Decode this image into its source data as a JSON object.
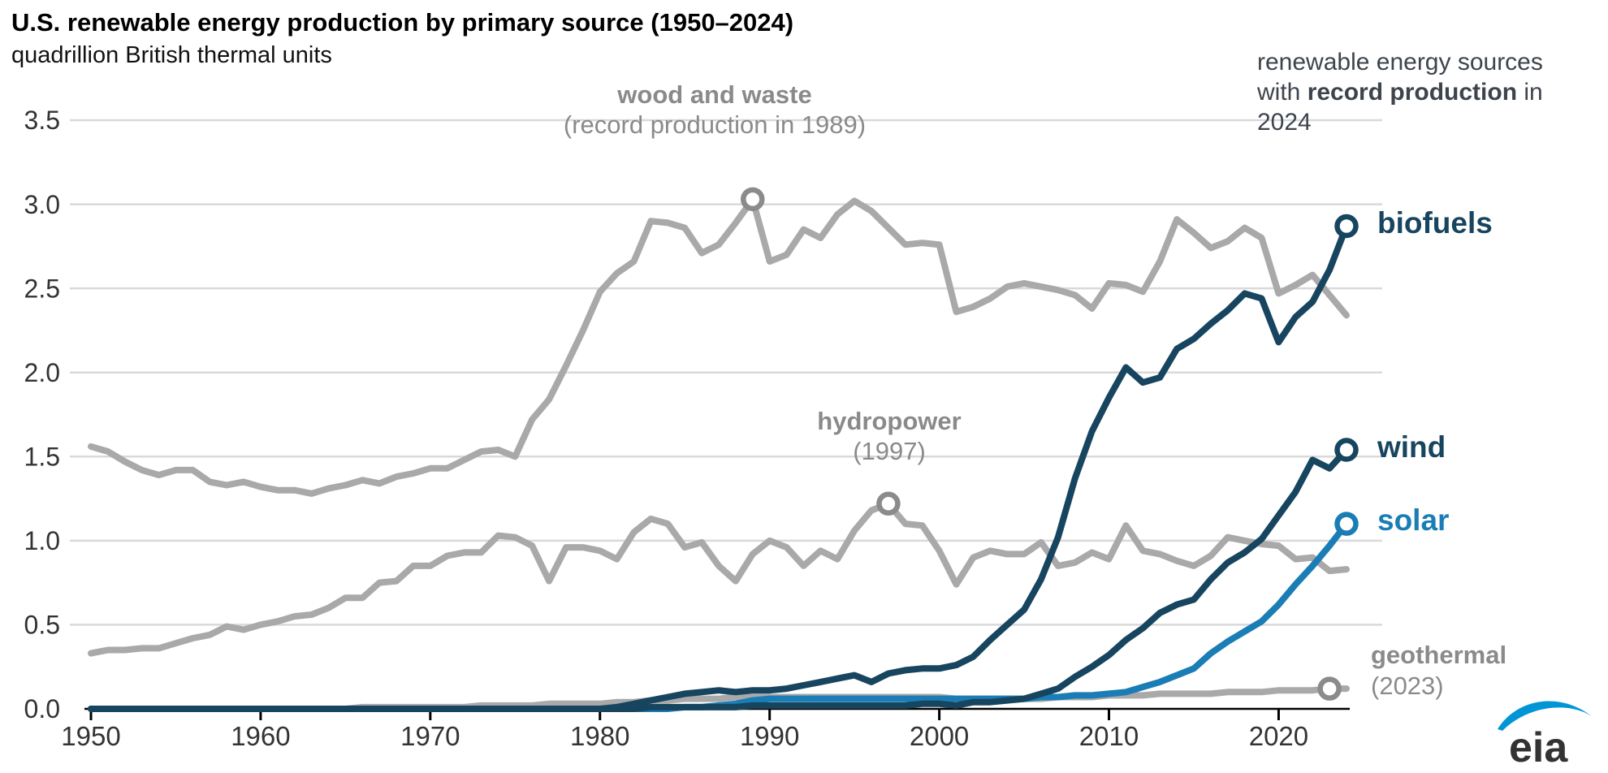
{
  "header": {
    "title": "U.S. renewable energy production by primary source (1950–2024)",
    "subtitle": "quadrillion British thermal units"
  },
  "annotations": {
    "right_note": {
      "pre": "renewable energy sources with ",
      "bold": "record production",
      "post": " in 2024"
    },
    "wood_note": {
      "line1": "wood and waste",
      "line2": "(record production in 1989)"
    },
    "hydro_note": {
      "line1": "hydropower",
      "line2": "(1997)"
    },
    "geo_note": {
      "line1": "geothermal",
      "line2": "(2023)"
    }
  },
  "series_labels": {
    "biofuels": "biofuels",
    "wind": "wind",
    "solar": "solar"
  },
  "logo": {
    "text": "eia",
    "swoosh_color": "#0096d6",
    "text_color": "#333333"
  },
  "colors": {
    "navy": "#17455f",
    "blue": "#1b7db5",
    "gray_line": "#a9a9a9",
    "gray_marker": "#8b8b8b",
    "grid": "#d9d9d9",
    "axis": "#000000",
    "tick_text": "#333333",
    "note_gray": "#8a8a8a",
    "note_dark": "#3d444c"
  },
  "chart_data": {
    "type": "line",
    "title": "U.S. renewable energy production by primary source (1950–2024)",
    "ylabel": "quadrillion British thermal units",
    "xlim": [
      1950,
      2024
    ],
    "ylim": [
      0,
      3.5
    ],
    "x_ticks": [
      1950,
      1960,
      1970,
      1980,
      1990,
      2000,
      2010,
      2020
    ],
    "y_ticks": [
      0.0,
      0.5,
      1.0,
      1.5,
      2.0,
      2.5,
      3.0,
      3.5
    ],
    "grid": true,
    "legend_position": "end-of-line labels",
    "years_start": 1950,
    "series": [
      {
        "name": "wood and waste",
        "key": "wood_and_waste",
        "color": "#a9a9a9",
        "marker_color": "#8b8b8b",
        "values": [
          1.56,
          1.53,
          1.47,
          1.42,
          1.39,
          1.42,
          1.42,
          1.35,
          1.33,
          1.35,
          1.32,
          1.3,
          1.3,
          1.28,
          1.31,
          1.33,
          1.36,
          1.34,
          1.38,
          1.4,
          1.43,
          1.43,
          1.48,
          1.53,
          1.54,
          1.5,
          1.72,
          1.84,
          2.04,
          2.25,
          2.48,
          2.59,
          2.66,
          2.9,
          2.89,
          2.86,
          2.71,
          2.76,
          2.89,
          3.03,
          2.66,
          2.7,
          2.85,
          2.8,
          2.94,
          3.02,
          2.96,
          2.86,
          2.76,
          2.77,
          2.76,
          2.36,
          2.39,
          2.44,
          2.51,
          2.53,
          2.51,
          2.49,
          2.46,
          2.38,
          2.53,
          2.52,
          2.48,
          2.66,
          2.91,
          2.83,
          2.74,
          2.78,
          2.86,
          2.8,
          2.47,
          2.52,
          2.58,
          2.46,
          2.34
        ]
      },
      {
        "name": "hydropower",
        "key": "hydropower",
        "color": "#a9a9a9",
        "marker_color": "#8b8b8b",
        "values": [
          0.33,
          0.35,
          0.35,
          0.36,
          0.36,
          0.39,
          0.42,
          0.44,
          0.49,
          0.47,
          0.5,
          0.52,
          0.55,
          0.56,
          0.6,
          0.66,
          0.66,
          0.75,
          0.76,
          0.85,
          0.85,
          0.91,
          0.93,
          0.93,
          1.03,
          1.02,
          0.97,
          0.76,
          0.96,
          0.96,
          0.94,
          0.89,
          1.05,
          1.13,
          1.1,
          0.96,
          0.99,
          0.85,
          0.76,
          0.92,
          1.0,
          0.96,
          0.85,
          0.94,
          0.89,
          1.06,
          1.18,
          1.22,
          1.1,
          1.09,
          0.94,
          0.74,
          0.9,
          0.94,
          0.92,
          0.92,
          0.99,
          0.85,
          0.87,
          0.93,
          0.89,
          1.09,
          0.94,
          0.92,
          0.88,
          0.85,
          0.91,
          1.02,
          1.0,
          0.98,
          0.97,
          0.89,
          0.9,
          0.82,
          0.83
        ]
      },
      {
        "name": "geothermal",
        "key": "geothermal",
        "color": "#a9a9a9",
        "marker_color": "#8b8b8b",
        "values": [
          0.0,
          0.0,
          0.0,
          0.0,
          0.0,
          0.0,
          0.0,
          0.0,
          0.0,
          0.0,
          0.0,
          0.0,
          0.0,
          0.0,
          0.0,
          0.0,
          0.01,
          0.01,
          0.01,
          0.01,
          0.01,
          0.01,
          0.01,
          0.02,
          0.02,
          0.02,
          0.02,
          0.03,
          0.03,
          0.03,
          0.03,
          0.04,
          0.04,
          0.05,
          0.05,
          0.06,
          0.06,
          0.06,
          0.07,
          0.07,
          0.07,
          0.07,
          0.07,
          0.07,
          0.07,
          0.07,
          0.07,
          0.07,
          0.07,
          0.07,
          0.07,
          0.06,
          0.06,
          0.06,
          0.06,
          0.06,
          0.06,
          0.07,
          0.07,
          0.07,
          0.08,
          0.08,
          0.08,
          0.09,
          0.09,
          0.09,
          0.09,
          0.1,
          0.1,
          0.1,
          0.11,
          0.11,
          0.11,
          0.12,
          0.12
        ]
      },
      {
        "name": "solar",
        "key": "solar",
        "color": "#1b7db5",
        "marker_color": "#1b7db5",
        "values": [
          0.0,
          0.0,
          0.0,
          0.0,
          0.0,
          0.0,
          0.0,
          0.0,
          0.0,
          0.0,
          0.0,
          0.0,
          0.0,
          0.0,
          0.0,
          0.0,
          0.0,
          0.0,
          0.0,
          0.0,
          0.0,
          0.0,
          0.0,
          0.0,
          0.0,
          0.0,
          0.0,
          0.0,
          0.0,
          0.0,
          0.0,
          0.0,
          0.0,
          0.0,
          0.0,
          0.01,
          0.01,
          0.02,
          0.03,
          0.05,
          0.06,
          0.06,
          0.06,
          0.06,
          0.06,
          0.06,
          0.06,
          0.06,
          0.06,
          0.06,
          0.06,
          0.06,
          0.06,
          0.06,
          0.06,
          0.06,
          0.07,
          0.07,
          0.08,
          0.08,
          0.09,
          0.1,
          0.13,
          0.16,
          0.2,
          0.24,
          0.33,
          0.4,
          0.46,
          0.52,
          0.62,
          0.74,
          0.85,
          0.97,
          1.1
        ]
      },
      {
        "name": "wind",
        "key": "wind",
        "color": "#17455f",
        "marker_color": "#17455f",
        "values": [
          0.0,
          0.0,
          0.0,
          0.0,
          0.0,
          0.0,
          0.0,
          0.0,
          0.0,
          0.0,
          0.0,
          0.0,
          0.0,
          0.0,
          0.0,
          0.0,
          0.0,
          0.0,
          0.0,
          0.0,
          0.0,
          0.0,
          0.0,
          0.0,
          0.0,
          0.0,
          0.0,
          0.0,
          0.0,
          0.0,
          0.0,
          0.0,
          0.0,
          0.01,
          0.01,
          0.01,
          0.01,
          0.01,
          0.01,
          0.02,
          0.02,
          0.02,
          0.02,
          0.02,
          0.02,
          0.02,
          0.02,
          0.02,
          0.02,
          0.03,
          0.03,
          0.02,
          0.04,
          0.04,
          0.05,
          0.06,
          0.09,
          0.12,
          0.19,
          0.25,
          0.32,
          0.41,
          0.48,
          0.57,
          0.62,
          0.65,
          0.77,
          0.87,
          0.93,
          1.01,
          1.15,
          1.29,
          1.48,
          1.43,
          1.54
        ]
      },
      {
        "name": "biofuels",
        "key": "biofuels",
        "color": "#17455f",
        "marker_color": "#17455f",
        "values": [
          0.0,
          0.0,
          0.0,
          0.0,
          0.0,
          0.0,
          0.0,
          0.0,
          0.0,
          0.0,
          0.0,
          0.0,
          0.0,
          0.0,
          0.0,
          0.0,
          0.0,
          0.0,
          0.0,
          0.0,
          0.0,
          0.0,
          0.0,
          0.0,
          0.0,
          0.0,
          0.0,
          0.0,
          0.0,
          0.0,
          0.0,
          0.01,
          0.03,
          0.05,
          0.07,
          0.09,
          0.1,
          0.11,
          0.1,
          0.11,
          0.11,
          0.12,
          0.14,
          0.16,
          0.18,
          0.2,
          0.16,
          0.21,
          0.23,
          0.24,
          0.24,
          0.26,
          0.31,
          0.41,
          0.5,
          0.59,
          0.77,
          1.02,
          1.37,
          1.65,
          1.85,
          2.03,
          1.94,
          1.97,
          2.14,
          2.2,
          2.29,
          2.37,
          2.47,
          2.44,
          2.18,
          2.33,
          2.42,
          2.61,
          2.87
        ]
      }
    ],
    "markers": [
      {
        "series": "wood_and_waste",
        "year": 1989,
        "value": 3.03,
        "label": "wood and waste record production"
      },
      {
        "series": "hydropower",
        "year": 1997,
        "value": 1.22,
        "label": "hydropower record production"
      },
      {
        "series": "geothermal",
        "year": 2023,
        "value": 0.12,
        "label": "geothermal record production"
      },
      {
        "series": "solar",
        "year": 2024,
        "value": 1.1,
        "label": "solar record production"
      },
      {
        "series": "wind",
        "year": 2024,
        "value": 1.54,
        "label": "wind record production"
      },
      {
        "series": "biofuels",
        "year": 2024,
        "value": 2.87,
        "label": "biofuels record production"
      }
    ]
  }
}
